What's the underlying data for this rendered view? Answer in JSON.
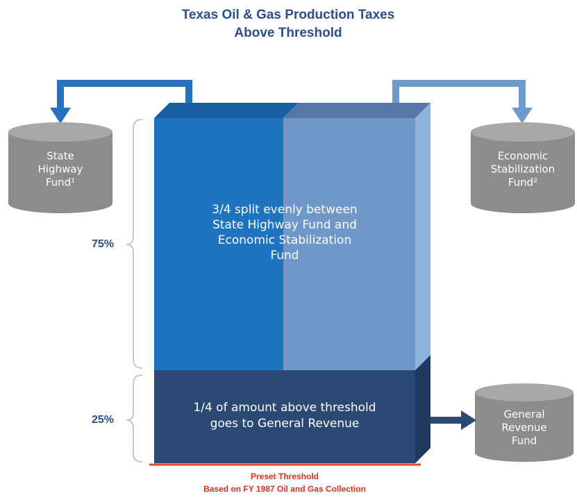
{
  "title": [
    "Texas Oil & Gas Production Taxes",
    "Above Threshold"
  ],
  "funds": {
    "state_highway": [
      "State",
      "Highway",
      "Fund¹"
    ],
    "economic_stabilization": [
      "Economic",
      "Stabilization",
      "Fund²"
    ],
    "general_revenue": [
      "General",
      "Revenue",
      "Fund"
    ]
  },
  "shares": {
    "upper": "75%",
    "lower": "25%"
  },
  "upper_text": [
    "3/4 split evenly between",
    "State Highway Fund and",
    "Economic Stabilization",
    "Fund"
  ],
  "lower_text": [
    "1/4 of amount above threshold",
    "goes to General Revenue"
  ],
  "threshold": [
    "Preset Threshold",
    "Based on FY 1987 Oil and Gas Collection"
  ]
}
